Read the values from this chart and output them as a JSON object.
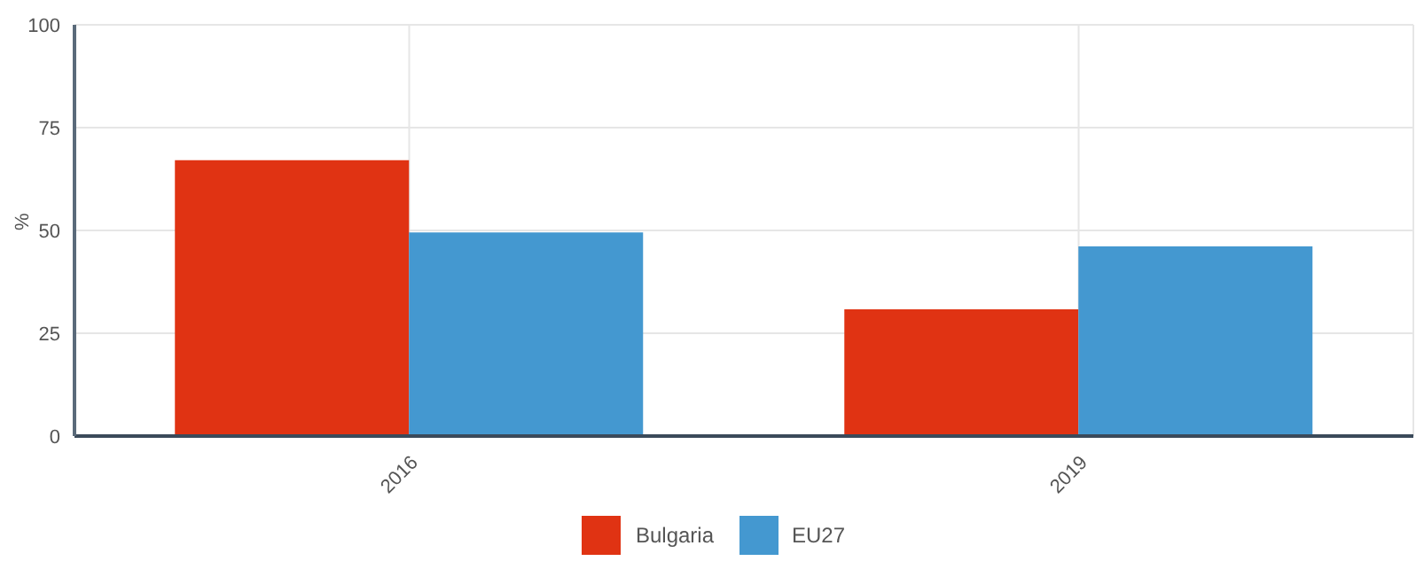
{
  "chart_data": {
    "type": "bar",
    "ylabel": "%",
    "categories": [
      "2016",
      "2019"
    ],
    "series": [
      {
        "name": "Bulgaria",
        "color": "#e03313",
        "values": [
          67.1,
          30.8
        ]
      },
      {
        "name": "EU27",
        "color": "#4498d0",
        "values": [
          49.5,
          46.1
        ]
      }
    ],
    "ylim": [
      0,
      100
    ],
    "yticks": [
      0,
      25,
      50,
      75,
      100
    ],
    "grid": true,
    "legend": "bottom"
  }
}
